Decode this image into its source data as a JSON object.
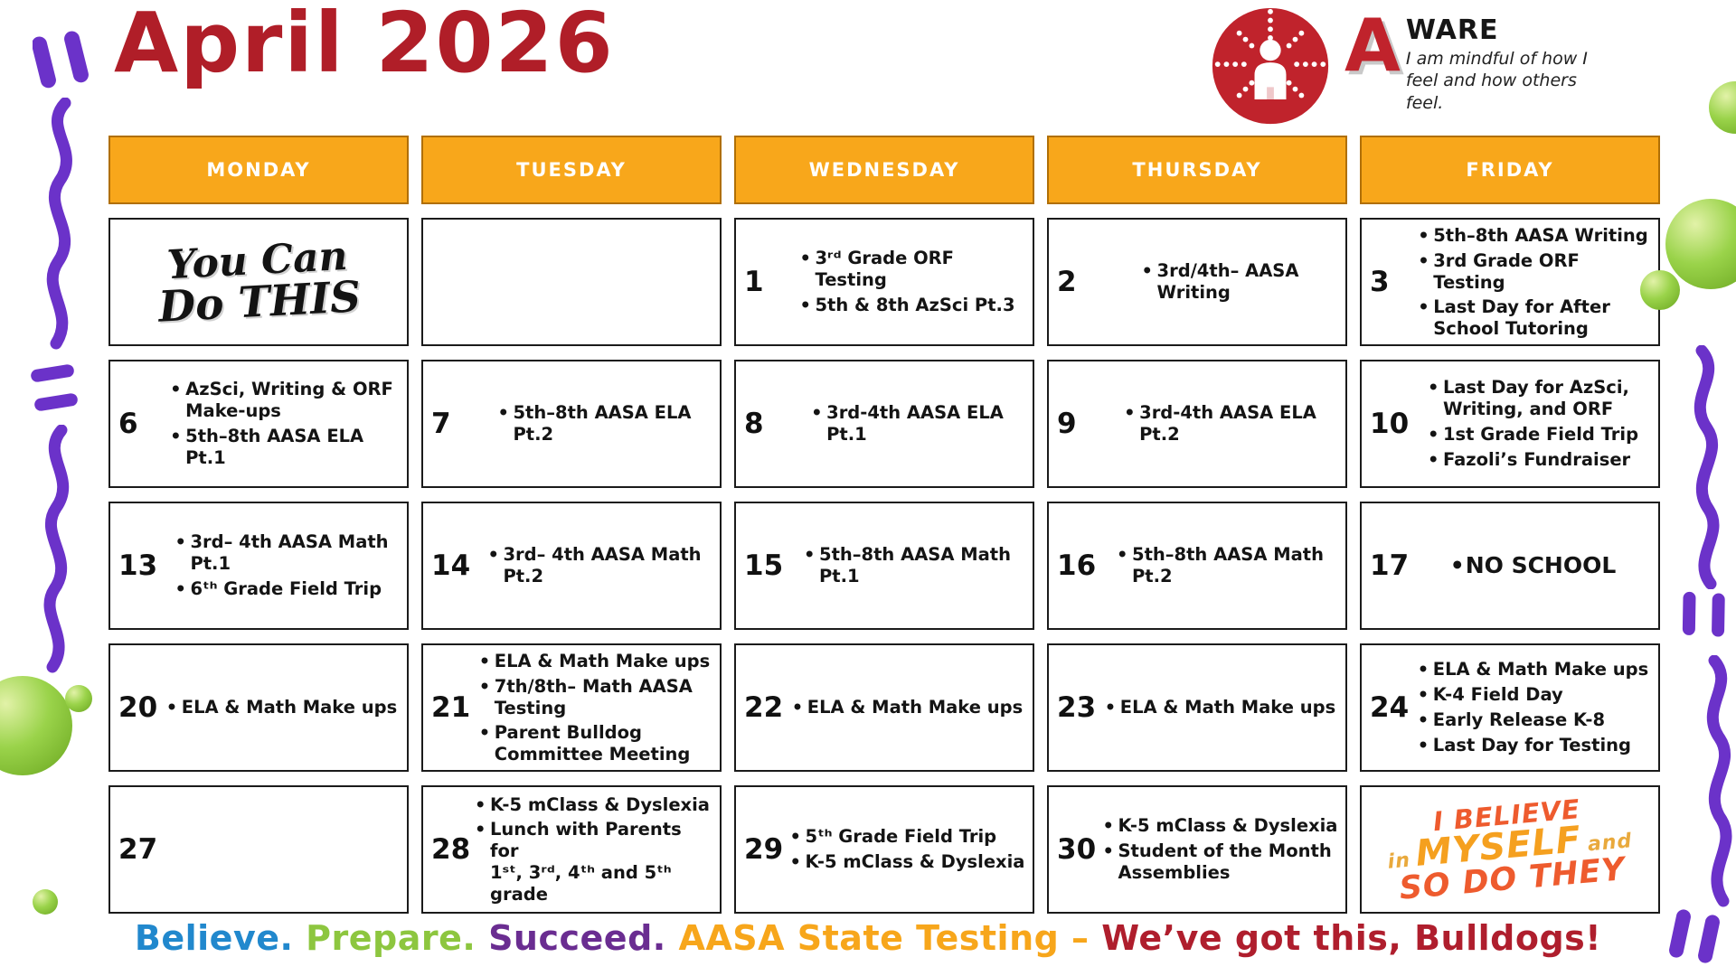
{
  "title": "April 2026",
  "logo": {
    "letter": "A",
    "word": "WARE",
    "tagline": "I am mindful of how I feel and how others feel."
  },
  "weekdays": [
    "MONDAY",
    "TUESDAY",
    "WEDNESDAY",
    "THURSDAY",
    "FRIDAY"
  ],
  "motivation_top": {
    "line1": "You Can",
    "line2": "Do THIS"
  },
  "motivation_bottom": {
    "line1": "I BELIEVE",
    "word_in": "in",
    "word_myself": "MYSELF",
    "word_and": "and",
    "line3": "SO DO THEY"
  },
  "weeks": [
    [
      {
        "type": "art-you-can"
      },
      {
        "type": "empty"
      },
      {
        "date": "1",
        "events": [
          "3ʳᵈ Grade ORF\nTesting",
          "5th & 8th AzSci Pt.3"
        ]
      },
      {
        "date": "2",
        "events": [
          "3rd/4th– AASA\nWriting"
        ]
      },
      {
        "date": "3",
        "events": [
          "5th–8th AASA Writing",
          "3rd Grade ORF\nTesting",
          "Last Day for After\nSchool Tutoring"
        ]
      }
    ],
    [
      {
        "date": "6",
        "events": [
          "AzSci, Writing & ORF\nMake-ups",
          "5th–8th AASA ELA\nPt.1"
        ]
      },
      {
        "date": "7",
        "events": [
          "5th–8th AASA ELA\nPt.2"
        ]
      },
      {
        "date": "8",
        "events": [
          "3rd-4th AASA ELA\nPt.1"
        ]
      },
      {
        "date": "9",
        "events": [
          "3rd-4th AASA ELA\nPt.2"
        ]
      },
      {
        "date": "10",
        "events": [
          "Last Day for AzSci,\nWriting, and ORF",
          "1st Grade Field Trip",
          "Fazoli’s Fundraiser"
        ]
      }
    ],
    [
      {
        "date": "13",
        "events": [
          "3rd– 4th AASA Math\nPt.1",
          "6ᵗʰ Grade Field Trip"
        ]
      },
      {
        "date": "14",
        "events": [
          "3rd– 4th AASA Math\nPt.2"
        ]
      },
      {
        "date": "15",
        "events": [
          "5th–8th AASA Math\nPt.1"
        ]
      },
      {
        "date": "16",
        "events": [
          "5th–8th AASA Math\nPt.2"
        ]
      },
      {
        "date": "17",
        "events": [
          "NO SCHOOL"
        ],
        "large": true
      }
    ],
    [
      {
        "date": "20",
        "events": [
          "ELA & Math Make ups"
        ]
      },
      {
        "date": "21",
        "events": [
          "ELA & Math Make ups",
          "7th/8th– Math AASA\nTesting",
          "Parent Bulldog\nCommittee Meeting"
        ]
      },
      {
        "date": "22",
        "events": [
          "ELA & Math Make ups"
        ]
      },
      {
        "date": "23",
        "events": [
          "ELA & Math Make ups"
        ]
      },
      {
        "date": "24",
        "events": [
          "ELA & Math Make ups",
          "K-4 Field Day",
          "Early Release K-8",
          "Last Day for Testing"
        ]
      }
    ],
    [
      {
        "date": "27",
        "events": []
      },
      {
        "date": "28",
        "events": [
          "K-5 mClass & Dyslexia",
          "Lunch with Parents for\n1ˢᵗ, 3ʳᵈ, 4ᵗʰ and 5ᵗʰ grade"
        ]
      },
      {
        "date": "29",
        "events": [
          "5ᵗʰ Grade Field Trip",
          "K-5 mClass & Dyslexia"
        ]
      },
      {
        "date": "30",
        "events": [
          "K-5 mClass & Dyslexia",
          "Student of the Month\nAssemblies"
        ]
      },
      {
        "type": "art-believe"
      }
    ]
  ],
  "footer": {
    "segments": [
      {
        "text": "Believe.",
        "color": "#2188CD"
      },
      {
        "text": "Prepare.",
        "color": "#8DC63F"
      },
      {
        "text": "Succeed.",
        "color": "#6A2D91"
      },
      {
        "text": "AASA State Testing –",
        "color": "#F7A61B"
      },
      {
        "text": "We’ve got this, Bulldogs!",
        "color": "#AF1E2D"
      }
    ]
  },
  "colors": {
    "title": "#B01E28",
    "header-bg": "#F8A71B",
    "header-border": "#B06F05",
    "cell-border": "#1B1B1B",
    "purple": "#6B32C9",
    "green-ball": "#8CC63E",
    "logo-red": "#C0232C",
    "believe-orange": "#EE5B2E",
    "believe-gold": "#E9A93C"
  }
}
